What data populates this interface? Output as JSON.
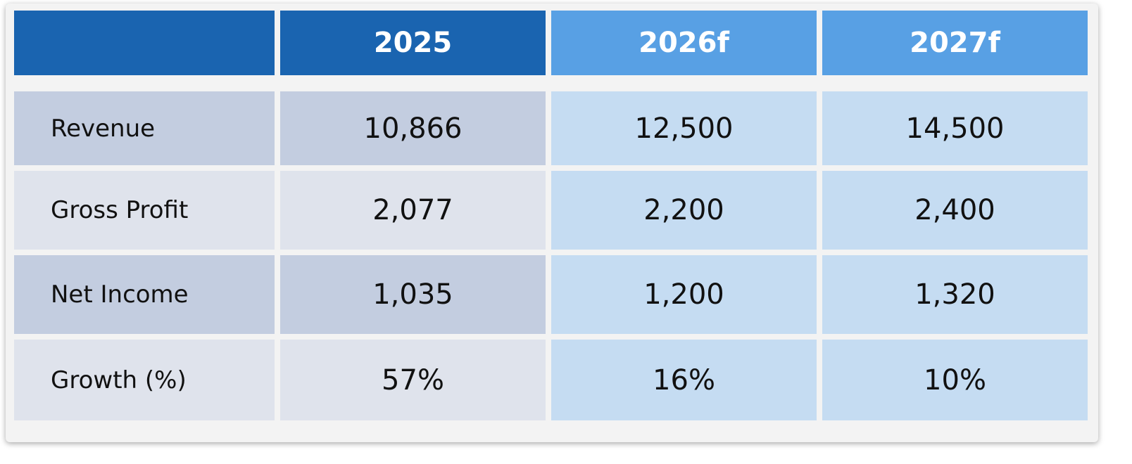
{
  "table": {
    "header": [
      "2025",
      "2026f",
      "2027f"
    ],
    "rows": [
      [
        "Revenue",
        "10,866",
        "12,500",
        "14,500"
      ],
      [
        "Gross Profit",
        "2,077",
        "2,200",
        "2,400"
      ],
      [
        "Net Income",
        "1,035",
        "1,200",
        "1,320"
      ],
      [
        "Growth (%)",
        "57%",
        "16%",
        "10%"
      ]
    ]
  }
}
